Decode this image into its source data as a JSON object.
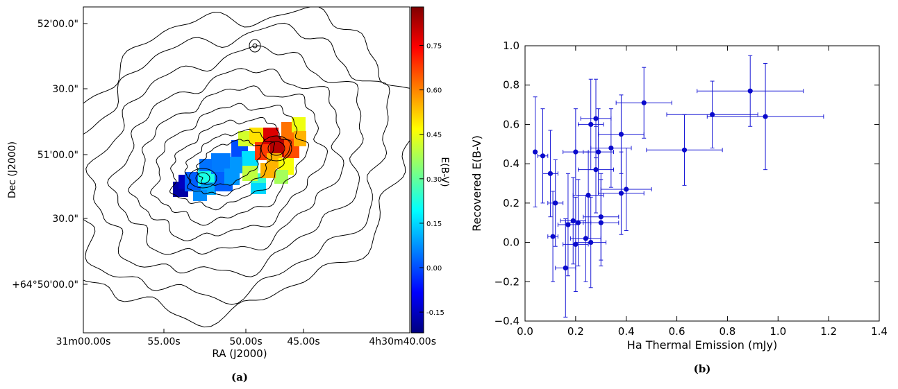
{
  "colors": {
    "error_bar": "#1a1ad6",
    "point": "#0a0acc",
    "contour": "#000000",
    "colormap": [
      "#00007f",
      "#0000ff",
      "#007fff",
      "#00ffff",
      "#7fff7f",
      "#ffff00",
      "#ff7f00",
      "#ff0000",
      "#7f0000"
    ]
  },
  "chart_data": [
    {
      "type": "heatmap",
      "caption": "(a)",
      "xlabel": "RA (J2000)",
      "ylabel": "Dec (J2000)",
      "x_ticks": [
        "31m00.00s",
        "55.00s",
        "50.00s",
        "45.00s",
        "4h30m40.00s"
      ],
      "y_ticks": [
        "52'00.0\"",
        "30.0\"",
        "51'00.0\"",
        "30.0\"",
        "+64°50'00.0\""
      ],
      "colorbar": {
        "label": "E(B-V)",
        "range": [
          -0.22,
          0.88
        ],
        "ticks": [
          "0.75",
          "0.60",
          "0.45",
          "0.30",
          "0.15",
          "0.00",
          "-0.15"
        ],
        "tick_values": [
          0.75,
          0.6,
          0.45,
          0.3,
          0.15,
          0.0,
          -0.15
        ]
      },
      "overlay": "contours"
    },
    {
      "type": "scatter",
      "caption": "(b)",
      "xlabel": "Ha Thermal Emission (mJy)",
      "ylabel": "Recovered E(B-V)",
      "xlim": [
        0.0,
        1.4
      ],
      "ylim": [
        -0.4,
        1.0
      ],
      "x_ticks": [
        "0.0",
        "0.2",
        "0.4",
        "0.6",
        "0.8",
        "1.0",
        "1.2",
        "1.4"
      ],
      "y_ticks": [
        "1.0",
        "0.8",
        "0.6",
        "0.4",
        "0.2",
        "0.0",
        "−0.2",
        "−0.4"
      ],
      "grid": false,
      "points": [
        {
          "x": 0.04,
          "y": 0.46,
          "xerr": 0.005,
          "yerr": 0.28
        },
        {
          "x": 0.07,
          "y": 0.44,
          "xerr": 0.02,
          "yerr": 0.24
        },
        {
          "x": 0.1,
          "y": 0.35,
          "xerr": 0.03,
          "yerr": 0.22
        },
        {
          "x": 0.12,
          "y": 0.2,
          "xerr": 0.03,
          "yerr": 0.22
        },
        {
          "x": 0.11,
          "y": 0.03,
          "xerr": 0.02,
          "yerr": 0.23
        },
        {
          "x": 0.16,
          "y": -0.13,
          "xerr": 0.04,
          "yerr": 0.25
        },
        {
          "x": 0.17,
          "y": 0.09,
          "xerr": 0.04,
          "yerr": 0.26
        },
        {
          "x": 0.19,
          "y": 0.11,
          "xerr": 0.05,
          "yerr": 0.22
        },
        {
          "x": 0.2,
          "y": 0.46,
          "xerr": 0.05,
          "yerr": 0.22
        },
        {
          "x": 0.2,
          "y": -0.01,
          "xerr": 0.05,
          "yerr": 0.24
        },
        {
          "x": 0.21,
          "y": 0.1,
          "xerr": 0.05,
          "yerr": 0.22
        },
        {
          "x": 0.24,
          "y": 0.02,
          "xerr": 0.06,
          "yerr": 0.22
        },
        {
          "x": 0.25,
          "y": 0.24,
          "xerr": 0.06,
          "yerr": 0.22
        },
        {
          "x": 0.26,
          "y": 0.6,
          "xerr": 0.05,
          "yerr": 0.23
        },
        {
          "x": 0.28,
          "y": 0.63,
          "xerr": 0.06,
          "yerr": 0.2
        },
        {
          "x": 0.26,
          "y": 0.0,
          "xerr": 0.06,
          "yerr": 0.23
        },
        {
          "x": 0.28,
          "y": 0.37,
          "xerr": 0.07,
          "yerr": 0.22
        },
        {
          "x": 0.29,
          "y": 0.46,
          "xerr": 0.06,
          "yerr": 0.22
        },
        {
          "x": 0.3,
          "y": 0.1,
          "xerr": 0.07,
          "yerr": 0.22
        },
        {
          "x": 0.3,
          "y": 0.13,
          "xerr": 0.07,
          "yerr": 0.22
        },
        {
          "x": 0.34,
          "y": 0.48,
          "xerr": 0.08,
          "yerr": 0.2
        },
        {
          "x": 0.38,
          "y": 0.55,
          "xerr": 0.09,
          "yerr": 0.2
        },
        {
          "x": 0.38,
          "y": 0.25,
          "xerr": 0.09,
          "yerr": 0.21
        },
        {
          "x": 0.4,
          "y": 0.27,
          "xerr": 0.1,
          "yerr": 0.21
        },
        {
          "x": 0.47,
          "y": 0.71,
          "xerr": 0.11,
          "yerr": 0.18
        },
        {
          "x": 0.63,
          "y": 0.47,
          "xerr": 0.15,
          "yerr": 0.18
        },
        {
          "x": 0.74,
          "y": 0.65,
          "xerr": 0.18,
          "yerr": 0.17
        },
        {
          "x": 0.89,
          "y": 0.77,
          "xerr": 0.21,
          "yerr": 0.18
        },
        {
          "x": 0.95,
          "y": 0.64,
          "xerr": 0.23,
          "yerr": 0.27
        }
      ]
    }
  ]
}
